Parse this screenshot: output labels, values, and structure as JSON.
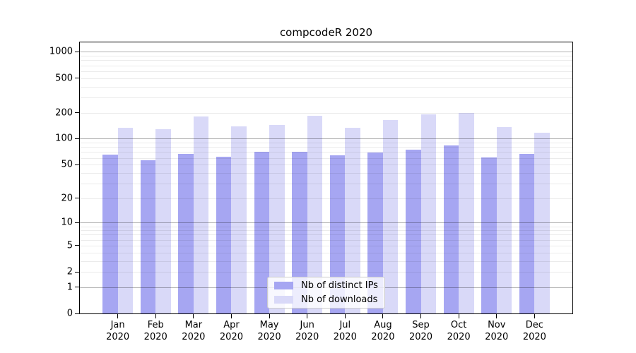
{
  "chart_data": {
    "type": "bar",
    "title": "compcodeR 2020",
    "categories": [
      "Jan",
      "Feb",
      "Mar",
      "Apr",
      "May",
      "Jun",
      "Jul",
      "Aug",
      "Sep",
      "Oct",
      "Nov",
      "Dec"
    ],
    "x_tick_year": "2020",
    "series": [
      {
        "name": "Nb of distinct IPs",
        "color": "#a6a6f2",
        "values": [
          65,
          56,
          66,
          62,
          70,
          70,
          64,
          69,
          75,
          84,
          61,
          67
        ]
      },
      {
        "name": "Nb of downloads",
        "color": "#d9d9f8",
        "values": [
          135,
          130,
          179,
          140,
          145,
          185,
          135,
          165,
          190,
          199,
          137,
          118
        ]
      }
    ],
    "y_ticks": [
      0,
      1,
      2,
      5,
      10,
      20,
      50,
      100,
      200,
      500,
      1000
    ],
    "y_scale": "log1p",
    "ylim": [
      0,
      1300
    ],
    "grid": "horizontal",
    "legend_position": "inside-bottom-center",
    "colors": {
      "axis": "#000000",
      "major_grid": "#b3b3b3",
      "minor_grid": "#ebebeb",
      "background": "#ffffff"
    }
  }
}
